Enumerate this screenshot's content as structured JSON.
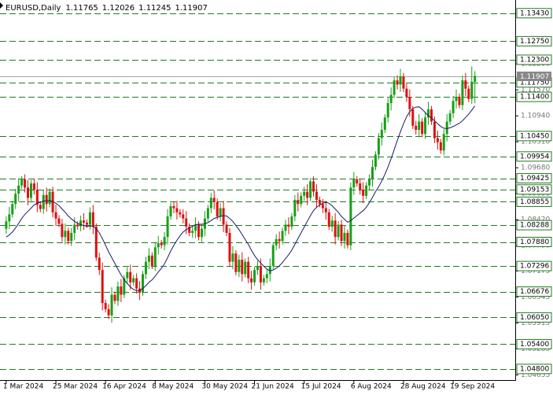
{
  "chart_data": {
    "type": "candlestick",
    "title": "EURUSD,Daily",
    "xlim": [
      -2,
      164
    ],
    "ylim": [
      1.0453,
      1.1375
    ],
    "xticks": [
      {
        "value": 0,
        "label": "1 Mar 2024"
      },
      {
        "value": 16,
        "label": "25 Mar 2024"
      },
      {
        "value": 32,
        "label": "16 Apr 2024"
      },
      {
        "value": 48,
        "label": "8 May 2024"
      },
      {
        "value": 64,
        "label": "30 May 2024"
      },
      {
        "value": 80,
        "label": "21 Jun 2024"
      },
      {
        "value": 96,
        "label": "15 Jul 2024"
      },
      {
        "value": 112,
        "label": "6 Aug 2024"
      },
      {
        "value": 128,
        "label": "28 Aug 2024"
      },
      {
        "value": 144,
        "label": "19 Sep 2024"
      }
    ],
    "yticks": [
      {
        "value": 1.122,
        "label": "1.12200"
      },
      {
        "value": 1.1157,
        "label": "1.11570"
      },
      {
        "value": 1.1094,
        "label": "1.10940"
      },
      {
        "value": 1.1031,
        "label": "1.10310"
      },
      {
        "value": 1.0968,
        "label": "1.09680"
      },
      {
        "value": 1.0905,
        "label": "1.09050"
      },
      {
        "value": 1.0842,
        "label": "1.08420"
      },
      {
        "value": 1.0779,
        "label": "1.07790"
      },
      1.07175,
      1.06545,
      1.05915,
      1.05285,
      1.04655
    ],
    "levels": [
      {
        "value": 1.1343,
        "label": "1.13430"
      },
      {
        "value": 1.1275,
        "label": "1.12750"
      },
      {
        "value": 1.123,
        "label": "1.12300"
      },
      {
        "value": 1.1175,
        "label": "1.11750"
      },
      {
        "value": 1.114,
        "label": "1.11400"
      },
      {
        "value": 1.1045,
        "label": "1.10450"
      },
      1.09954,
      1.09425,
      1.09153,
      1.08855,
      1.08288,
      {
        "value": 1.0788,
        "label": "1.07880"
      },
      1.07296,
      1.06676,
      {
        "value": 1.0605,
        "label": "1.06050"
      },
      {
        "value": 1.054,
        "label": "1.05400"
      },
      {
        "value": 1.048,
        "label": "1.04800"
      }
    ],
    "level_color": "#1f7a1f",
    "up_color": "#16a016",
    "down_color": "#e01010",
    "open": [
      1.082,
      1.0838,
      1.0855,
      1.088,
      1.0905,
      1.0925,
      1.094,
      1.092,
      1.0895,
      1.093,
      1.0915,
      1.0878,
      1.0868,
      1.0902,
      1.088,
      1.091,
      1.086,
      1.0845,
      1.0832,
      1.08,
      1.0815,
      1.079,
      1.081,
      1.083,
      1.0826,
      1.084,
      1.0835,
      1.083,
      1.086,
      1.0825,
      1.075,
      1.072,
      1.064,
      1.0625,
      1.061,
      1.066,
      1.0645,
      1.068,
      1.066,
      1.07,
      1.0715,
      1.069,
      1.07,
      1.0675,
      1.0665,
      1.071,
      1.074,
      1.0755,
      1.073,
      1.0775,
      1.0785,
      1.078,
      1.08,
      1.085,
      1.0875,
      1.087,
      1.086,
      1.0855,
      1.0845,
      1.0825,
      1.081,
      1.0815,
      1.083,
      1.08,
      1.082,
      1.0845,
      1.087,
      1.0895,
      1.0885,
      1.085,
      1.087,
      1.083,
      1.081,
      1.074,
      1.076,
      1.0715,
      1.0745,
      1.071,
      1.074,
      1.07,
      1.069,
      1.072,
      1.073,
      1.069,
      1.07,
      1.071,
      1.073,
      1.078,
      1.0795,
      1.079,
      1.0815,
      1.083,
      1.0825,
      1.085,
      1.089,
      1.088,
      1.09,
      1.091,
      1.0895,
      1.0935,
      1.091,
      1.089,
      1.088,
      1.087,
      1.086,
      1.0825,
      1.084,
      1.08,
      1.083,
      1.079,
      1.081,
      1.078,
      1.092,
      1.094,
      1.093,
      1.0915,
      1.09,
      1.0925,
      1.094,
      1.097,
      1.1,
      1.104,
      1.106,
      1.109,
      1.1125,
      1.1145,
      1.118,
      1.117,
      1.119,
      1.116,
      1.114,
      1.111,
      1.107,
      1.106,
      1.108,
      1.105,
      1.109,
      1.111,
      1.108,
      1.104,
      1.103,
      1.101,
      1.105,
      1.108,
      1.11,
      1.113,
      1.114,
      1.112,
      1.118,
      1.116,
      1.1135,
      1.11765
    ],
    "high": [
      1.085,
      1.0873,
      1.0888,
      1.0917,
      1.0943,
      1.0948,
      1.0952,
      1.0938,
      1.0938,
      1.0942,
      1.0933,
      1.0886,
      1.0914,
      1.092,
      1.0918,
      1.0922,
      1.0878,
      1.0853,
      1.0844,
      1.0833,
      1.0823,
      1.0822,
      1.0848,
      1.0838,
      1.0852,
      1.0858,
      1.0843,
      1.0872,
      1.0878,
      1.0833,
      1.0762,
      1.0738,
      1.0648,
      1.0637,
      1.0678,
      1.0668,
      1.0692,
      1.0698,
      1.0708,
      1.0727,
      1.0733,
      1.0708,
      1.0712,
      1.0693,
      1.0718,
      1.0752,
      1.0773,
      1.0763,
      1.0787,
      1.0803,
      1.0793,
      1.0812,
      1.0868,
      1.0883,
      1.0887,
      1.0888,
      1.0868,
      1.0867,
      1.0863,
      1.0833,
      1.0827,
      1.0848,
      1.0838,
      1.0832,
      1.0863,
      1.0878,
      1.0907,
      1.0913,
      1.0893,
      1.0882,
      1.0888,
      1.0838,
      1.0822,
      1.0778,
      1.0768,
      1.0757,
      1.0763,
      1.0748,
      1.0752,
      1.0718,
      1.0728,
      1.0742,
      1.0748,
      1.0708,
      1.0722,
      1.0748,
      1.0788,
      1.0807,
      1.0813,
      1.0823,
      1.0842,
      1.0848,
      1.0858,
      1.0902,
      1.0908,
      1.0908,
      1.0922,
      1.0928,
      1.0943,
      1.0947,
      1.0928,
      1.0898,
      1.0892,
      1.0888,
      1.0868,
      1.0852,
      1.0858,
      1.0838,
      1.0842,
      1.0828,
      1.0818,
      1.0932,
      1.0958,
      1.0948,
      1.0942,
      1.0933,
      1.0933,
      1.0952,
      1.0988,
      1.1008,
      1.1052,
      1.1078,
      1.1098,
      1.1137,
      1.1163,
      1.1188,
      1.1192,
      1.1208,
      1.1198,
      1.1172,
      1.1158,
      1.1118,
      1.1082,
      1.1098,
      1.1088,
      1.1102,
      1.1128,
      1.1118,
      1.1092,
      1.1058,
      1.1038,
      1.1062,
      1.1098,
      1.1108,
      1.1142,
      1.1158,
      1.1148,
      1.1192,
      1.1198,
      1.1168,
      1.1214,
      1.12026
    ],
    "low": [
      1.0808,
      1.082,
      1.0847,
      1.0868,
      1.0887,
      1.0917,
      1.0908,
      1.0877,
      1.0887,
      1.0903,
      1.086,
      1.086,
      1.0856,
      1.0862,
      1.0872,
      1.0848,
      1.0827,
      1.0824,
      1.0788,
      1.0782,
      1.0782,
      1.0778,
      1.0792,
      1.0818,
      1.0814,
      1.0817,
      1.0822,
      1.0818,
      1.0807,
      1.0742,
      1.0708,
      1.0622,
      1.0617,
      1.0601,
      1.0592,
      1.0637,
      1.0633,
      1.0642,
      1.0652,
      1.0688,
      1.0672,
      1.0682,
      1.0663,
      1.0647,
      1.0657,
      1.0698,
      1.0722,
      1.0722,
      1.0718,
      1.0757,
      1.0772,
      1.0768,
      1.0782,
      1.0842,
      1.0858,
      1.0842,
      1.0847,
      1.0833,
      1.0807,
      1.0802,
      1.0798,
      1.0797,
      1.0792,
      1.0788,
      1.0802,
      1.0837,
      1.0858,
      1.0867,
      1.0842,
      1.0838,
      1.0812,
      1.0802,
      1.0728,
      1.0722,
      1.0707,
      1.0703,
      1.0692,
      1.0702,
      1.0688,
      1.0672,
      1.0682,
      1.0708,
      1.0672,
      1.0682,
      1.0688,
      1.0692,
      1.0722,
      1.0768,
      1.0772,
      1.0782,
      1.0803,
      1.0807,
      1.0817,
      1.0838,
      1.0862,
      1.0872,
      1.0888,
      1.0877,
      1.0887,
      1.0898,
      1.0872,
      1.0872,
      1.0858,
      1.0842,
      1.0817,
      1.0813,
      1.0782,
      1.0792,
      1.0778,
      1.0772,
      1.0772,
      1.0768,
      1.0902,
      1.0922,
      1.0903,
      1.0882,
      1.0892,
      1.0913,
      1.0922,
      1.0962,
      1.0988,
      1.1022,
      1.1052,
      1.1078,
      1.1107,
      1.1137,
      1.1158,
      1.1152,
      1.1152,
      1.1128,
      1.1092,
      1.1062,
      1.1048,
      1.1042,
      1.1042,
      1.1038,
      1.1072,
      1.1072,
      1.1028,
      1.1012,
      1.1002,
      1.0998,
      1.1032,
      1.1072,
      1.1088,
      1.1112,
      1.1112,
      1.1108,
      1.1142,
      1.1127,
      1.1123,
      1.11245
    ],
    "close": [
      1.0838,
      1.0855,
      1.088,
      1.0905,
      1.0925,
      1.094,
      1.092,
      1.0895,
      1.093,
      1.0915,
      1.0878,
      1.0868,
      1.0902,
      1.088,
      1.091,
      1.086,
      1.0845,
      1.0832,
      1.08,
      1.0815,
      1.079,
      1.081,
      1.083,
      1.0826,
      1.084,
      1.0835,
      1.083,
      1.086,
      1.0825,
      1.075,
      1.072,
      1.064,
      1.0625,
      1.061,
      1.066,
      1.0645,
      1.068,
      1.066,
      1.07,
      1.0715,
      1.069,
      1.07,
      1.0675,
      1.0665,
      1.071,
      1.074,
      1.0755,
      1.073,
      1.0775,
      1.0785,
      1.078,
      1.08,
      1.085,
      1.0875,
      1.087,
      1.086,
      1.0855,
      1.0845,
      1.0825,
      1.081,
      1.0815,
      1.083,
      1.08,
      1.082,
      1.0845,
      1.087,
      1.0895,
      1.0885,
      1.085,
      1.087,
      1.083,
      1.081,
      1.074,
      1.076,
      1.0715,
      1.0745,
      1.071,
      1.074,
      1.07,
      1.069,
      1.072,
      1.073,
      1.069,
      1.07,
      1.071,
      1.073,
      1.078,
      1.0795,
      1.079,
      1.0815,
      1.083,
      1.0825,
      1.085,
      1.089,
      1.088,
      1.09,
      1.091,
      1.0895,
      1.0935,
      1.091,
      1.089,
      1.088,
      1.087,
      1.086,
      1.0825,
      1.084,
      1.08,
      1.083,
      1.079,
      1.081,
      1.078,
      1.092,
      1.094,
      1.093,
      1.0915,
      1.09,
      1.0925,
      1.094,
      1.097,
      1.1,
      1.104,
      1.106,
      1.109,
      1.1125,
      1.1145,
      1.118,
      1.117,
      1.119,
      1.116,
      1.114,
      1.111,
      1.107,
      1.106,
      1.108,
      1.105,
      1.109,
      1.111,
      1.108,
      1.104,
      1.103,
      1.101,
      1.105,
      1.108,
      1.11,
      1.113,
      1.114,
      1.112,
      1.118,
      1.116,
      1.1135,
      1.1177,
      1.11907
    ],
    "ma": {
      "color": "#1a1a6e",
      "values": [
        1.08,
        1.0805,
        1.0812,
        1.0822,
        1.0833,
        1.0845,
        1.0855,
        1.0862,
        1.087,
        1.0878,
        1.0882,
        1.0884,
        1.0887,
        1.0888,
        1.0889,
        1.0886,
        1.0882,
        1.0876,
        1.0868,
        1.086,
        1.0851,
        1.0844,
        1.0838,
        1.0833,
        1.083,
        1.0828,
        1.0826,
        1.0827,
        1.0826,
        1.082,
        1.081,
        1.0796,
        1.078,
        1.0764,
        1.075,
        1.0736,
        1.0722,
        1.0708,
        1.0697,
        1.0687,
        1.0679,
        1.0673,
        1.067,
        1.067,
        1.0675,
        1.0682,
        1.069,
        1.0696,
        1.0705,
        1.0715,
        1.0724,
        1.0735,
        1.075,
        1.0766,
        1.078,
        1.0792,
        1.0803,
        1.0812,
        1.0818,
        1.0822,
        1.0826,
        1.083,
        1.0831,
        1.0831,
        1.0832,
        1.0835,
        1.084,
        1.0845,
        1.0848,
        1.085,
        1.0852,
        1.0851,
        1.0845,
        1.0838,
        1.0828,
        1.0818,
        1.0806,
        1.0794,
        1.0782,
        1.0768,
        1.0755,
        1.0745,
        1.0737,
        1.0729,
        1.0722,
        1.0718,
        1.072,
        1.0724,
        1.073,
        1.0738,
        1.0748,
        1.0757,
        1.0768,
        1.0782,
        1.0796,
        1.081,
        1.0824,
        1.0838,
        1.0852,
        1.0864,
        1.0872,
        1.0878,
        1.0882,
        1.0884,
        1.0882,
        1.0876,
        1.0868,
        1.086,
        1.085,
        1.0843,
        1.0836,
        1.084,
        1.0846,
        1.0852,
        1.0858,
        1.0864,
        1.0872,
        1.0883,
        1.0896,
        1.091,
        1.0922,
        1.0936,
        1.0952,
        1.097,
        1.099,
        1.1012,
        1.1034,
        1.1055,
        1.1075,
        1.1092,
        1.1104,
        1.1112,
        1.1115,
        1.1116,
        1.111,
        1.1102,
        1.1094,
        1.1089,
        1.1082,
        1.1075,
        1.1068,
        1.1064,
        1.1063,
        1.1065,
        1.1068,
        1.1072,
        1.1076,
        1.1082,
        1.109,
        1.1098,
        1.1108,
        1.1118
      ]
    }
  }
}
